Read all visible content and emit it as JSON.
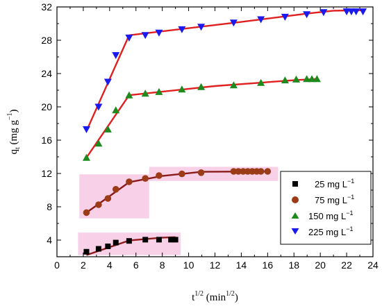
{
  "chart_data": {
    "type": "scatter",
    "xlabel": {
      "main": "t",
      "sup1": "1/2",
      "paren": " (min",
      "sup2": "1/2",
      "close": ")"
    },
    "ylabel": {
      "main": "q",
      "sub": "t",
      "paren": " (mg g",
      "sup": "−1",
      "close": ")"
    },
    "xlim": [
      0,
      24
    ],
    "ylim": [
      2,
      32
    ],
    "xticks": [
      0,
      2,
      4,
      6,
      8,
      10,
      12,
      14,
      16,
      18,
      20,
      22,
      24
    ],
    "yticks": [
      4,
      8,
      12,
      16,
      20,
      24,
      28,
      32
    ],
    "legend_position": "inside-right",
    "series": [
      {
        "name": "25 mg L",
        "name_sup": "−1",
        "marker": "square",
        "color": "#000000",
        "fit_color": "#8b1a1a",
        "band_color": "#f5c2e0",
        "x": [
          2.24,
          3.16,
          3.87,
          4.47,
          5.48,
          6.71,
          7.75,
          8.66,
          9.0
        ],
        "y": [
          2.6,
          2.95,
          3.25,
          3.7,
          3.9,
          4.05,
          4.05,
          4.05,
          4.05
        ],
        "fit": [
          [
            2.24,
            2.2
          ],
          [
            5.48,
            3.95
          ],
          [
            8.0,
            4.3
          ],
          [
            9.0,
            4.35
          ]
        ],
        "band": [
          [
            1.6,
            2.2,
            9.4,
            4.9
          ]
        ]
      },
      {
        "name": "75 mg L",
        "name_sup": "−1",
        "marker": "circle",
        "color": "#9b3b17",
        "fit_color": "#8b1a1a",
        "band_color": "#f5c2e0",
        "x": [
          2.24,
          3.16,
          3.87,
          4.47,
          5.48,
          6.71,
          7.75,
          9.49,
          10.95,
          13.42,
          13.78,
          14.14,
          14.49,
          14.83,
          15.17,
          15.49,
          16.0
        ],
        "y": [
          7.3,
          8.25,
          9.0,
          10.1,
          11.0,
          11.4,
          11.75,
          11.95,
          12.1,
          12.25,
          12.25,
          12.25,
          12.25,
          12.25,
          12.25,
          12.25,
          12.25
        ],
        "fit": [
          [
            2.24,
            7.3
          ],
          [
            5.48,
            10.95
          ],
          [
            8.0,
            11.7
          ],
          [
            11.0,
            12.2
          ],
          [
            16.0,
            12.25
          ]
        ],
        "band": [
          [
            1.7,
            6.6,
            7.0,
            11.9
          ],
          [
            7.0,
            11.1,
            16.8,
            12.8
          ]
        ]
      },
      {
        "name": "150 mg L",
        "name_sup": "−1",
        "marker": "triangle-up",
        "color": "#1c8a1c",
        "fit_color": "#e02020",
        "x": [
          2.24,
          3.16,
          3.87,
          4.47,
          5.48,
          6.71,
          7.75,
          9.49,
          10.95,
          13.42,
          15.49,
          17.32,
          18.17,
          18.97,
          19.36,
          19.75
        ],
        "y": [
          13.9,
          15.6,
          17.3,
          19.6,
          21.4,
          21.6,
          21.8,
          22.1,
          22.4,
          22.6,
          22.9,
          23.2,
          23.3,
          23.35,
          23.35,
          23.35
        ],
        "fit": [
          [
            2.24,
            13.9
          ],
          [
            5.48,
            21.4
          ],
          [
            12.0,
            22.5
          ],
          [
            18.0,
            23.2
          ],
          [
            19.75,
            23.35
          ]
        ]
      },
      {
        "name": "225 mg L",
        "name_sup": "−1",
        "marker": "triangle-down",
        "color": "#1a1aee",
        "fit_color": "#e02020",
        "x": [
          2.24,
          3.16,
          3.87,
          4.47,
          5.48,
          6.71,
          7.75,
          9.49,
          10.95,
          13.42,
          15.49,
          17.32,
          18.97,
          20.25,
          22.0,
          22.36,
          22.72,
          23.24
        ],
        "y": [
          17.3,
          20.0,
          23.0,
          26.2,
          28.3,
          28.6,
          28.9,
          29.3,
          29.6,
          30.1,
          30.5,
          30.8,
          31.1,
          31.35,
          31.45,
          31.45,
          31.45,
          31.45
        ],
        "fit": [
          [
            2.24,
            17.1
          ],
          [
            5.48,
            28.6
          ],
          [
            14.0,
            30.2
          ],
          [
            19.0,
            31.2
          ],
          [
            21.0,
            31.55
          ],
          [
            23.24,
            31.6
          ]
        ]
      }
    ]
  }
}
